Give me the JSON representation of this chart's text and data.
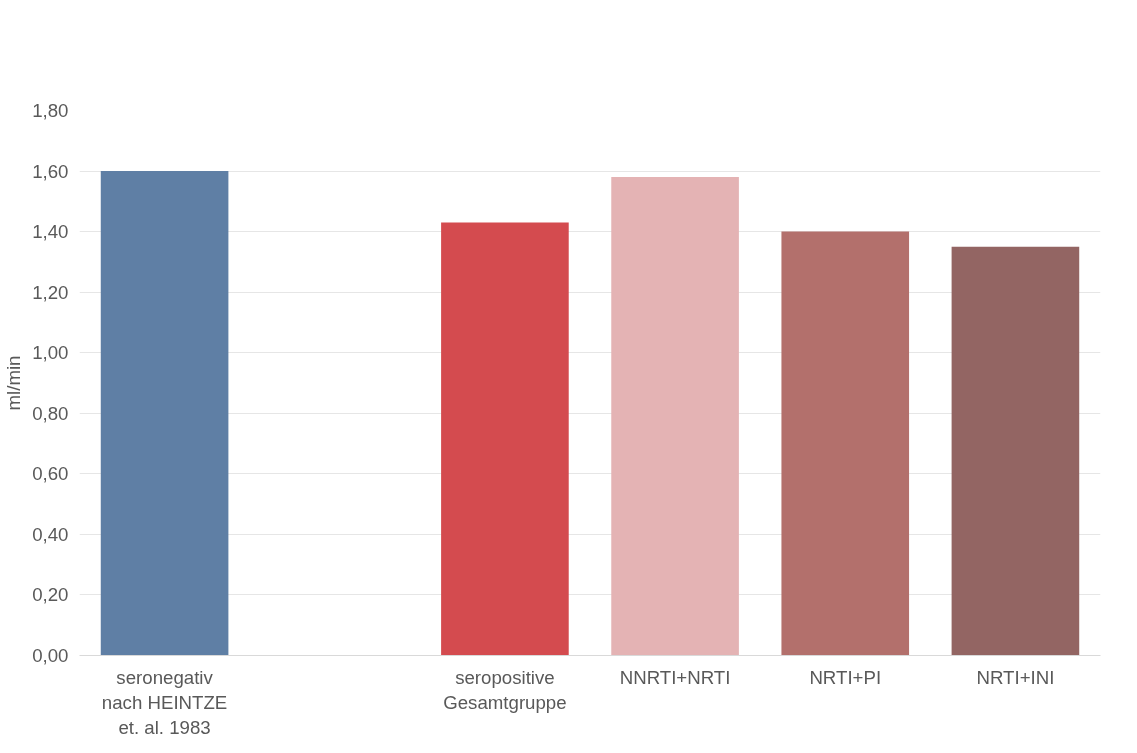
{
  "chart_data": {
    "type": "bar",
    "ylabel": "ml/min",
    "categories": [
      "seronegativ\nnach HEINTZE\net. al. 1983",
      null,
      "seropositive\nGesamtgruppe",
      "NNRTI+NRTI",
      "NRTI+PI",
      "NRTI+INI"
    ],
    "values": [
      1.6,
      null,
      1.43,
      1.58,
      1.4,
      1.35
    ],
    "colors": [
      "#5f7fa5",
      null,
      "#d44b4f",
      "#e4b3b4",
      "#b3706c",
      "#936563"
    ],
    "ylim": [
      0,
      1.8
    ],
    "yticks": [
      {
        "value": 0,
        "label": "0,00"
      },
      {
        "value": 0.2,
        "label": "0,20"
      },
      {
        "value": 0.4,
        "label": "0,40"
      },
      {
        "value": 0.6,
        "label": "0,60"
      },
      {
        "value": 0.8,
        "label": "0,80"
      },
      {
        "value": 1.0,
        "label": "1,00"
      },
      {
        "value": 1.2,
        "label": "1,20"
      },
      {
        "value": 1.4,
        "label": "1,40"
      },
      {
        "value": 1.6,
        "label": "1,60"
      },
      {
        "value": 1.8,
        "label": "1,80"
      }
    ],
    "grid": "y"
  }
}
